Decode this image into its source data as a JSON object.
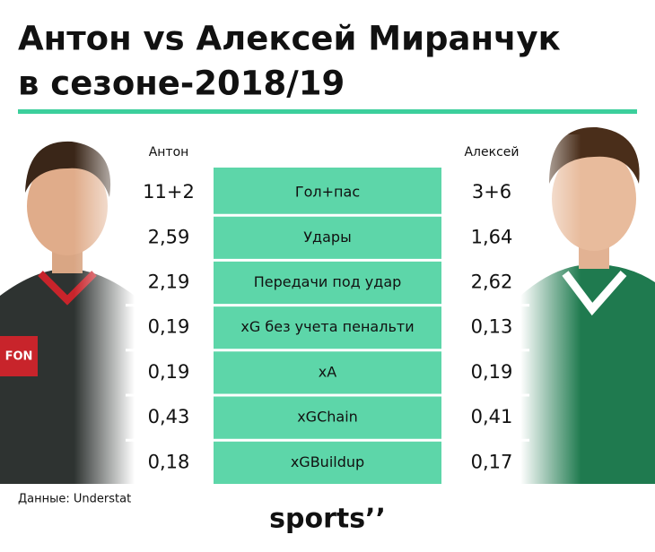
{
  "title": [
    "Антон vs Алексей Миранчук",
    "в сезоне-2018/19"
  ],
  "table": {
    "header": [
      "Антон",
      "Алексей"
    ],
    "rows": [
      [
        "11+2",
        "Гол+пас",
        "3+6"
      ],
      [
        "2,59",
        "Удары",
        "1,64"
      ],
      [
        "2,19",
        "Передачи под удар",
        "2,62"
      ],
      [
        "0,19",
        "xG без учета пенальти",
        "0,13"
      ],
      [
        "0,19",
        "xA",
        "0,19"
      ],
      [
        "0,43",
        "xGChain",
        "0,41"
      ],
      [
        "0,18",
        "xGBuildup",
        "0,17"
      ]
    ]
  },
  "source": "Данные: Understat",
  "logo": "sports’’"
}
